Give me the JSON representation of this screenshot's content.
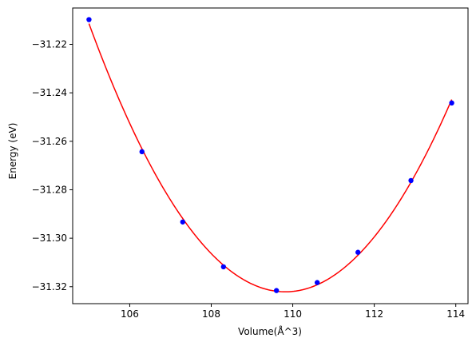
{
  "chart_data": {
    "type": "scatter",
    "title": "",
    "xlabel": "Volume(Å^3)",
    "ylabel": "Energy (eV)",
    "xlim": [
      104.6,
      114.3
    ],
    "ylim": [
      -31.327,
      -31.205
    ],
    "x_ticks": [
      106,
      108,
      110,
      112,
      114
    ],
    "y_ticks": [
      -31.22,
      -31.24,
      -31.26,
      -31.28,
      -31.3,
      -31.32
    ],
    "x_tick_labels": [
      "106",
      "108",
      "110",
      "112",
      "114"
    ],
    "y_tick_labels": [
      "−31.22",
      "−31.24",
      "−31.26",
      "−31.28",
      "−31.30",
      "−31.32"
    ],
    "grid": false,
    "series": [
      {
        "kind": "points",
        "color": "#0000ff",
        "marker": "circle",
        "x": [
          105.0,
          106.3,
          107.3,
          108.3,
          109.6,
          110.6,
          111.6,
          112.9,
          113.9
        ],
        "y": [
          -31.2098,
          -31.2643,
          -31.2933,
          -31.3118,
          -31.3216,
          -31.3183,
          -31.3058,
          -31.2762,
          -31.2442
        ]
      },
      {
        "kind": "fit-curve",
        "color": "#ff0000",
        "x": [
          105.0,
          106.3,
          107.3,
          108.3,
          109.6,
          110.6,
          111.6,
          112.9,
          113.9
        ],
        "y": [
          -31.2098,
          -31.2643,
          -31.2933,
          -31.3118,
          -31.3216,
          -31.3183,
          -31.3058,
          -31.2762,
          -31.2442
        ]
      }
    ]
  }
}
